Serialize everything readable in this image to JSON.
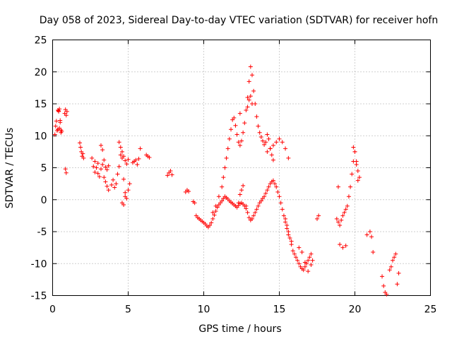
{
  "chart_data": {
    "type": "scatter",
    "title": "Day 058 of 2023, Sidereal Day-to-day VTEC variation (SDTVAR) for receiver hofn",
    "xlabel": "GPS time / hours",
    "ylabel": "SDTVAR / TECUs",
    "xlim": [
      0,
      25
    ],
    "ylim": [
      -15,
      25
    ],
    "xticks": [
      0,
      5,
      10,
      15,
      20,
      25
    ],
    "yticks": [
      -15,
      -10,
      -5,
      0,
      5,
      10,
      15,
      20,
      25
    ],
    "xtick_labels": [
      "0",
      "5",
      "10",
      "15",
      "20",
      "25"
    ],
    "ytick_labels": [
      "-15",
      "-10",
      "-5",
      "0",
      "5",
      "10",
      "15",
      "20",
      "25"
    ],
    "grid": true,
    "marker": "+",
    "color": "#ff0000",
    "series": [
      {
        "name": "SDTVAR",
        "x": [
          0.15,
          0.2,
          0.25,
          0.3,
          0.35,
          0.4,
          0.45,
          0.5,
          0.55,
          0.6,
          0.35,
          0.4,
          0.45,
          0.5,
          0.55,
          0.8,
          0.85,
          0.9,
          0.95,
          0.85,
          0.9,
          1.8,
          1.85,
          1.9,
          1.95,
          2.0,
          2.05,
          2.6,
          2.7,
          2.8,
          2.9,
          3.0,
          3.1,
          3.2,
          3.3,
          3.4,
          3.5,
          3.6,
          3.7,
          2.8,
          3.0,
          3.2,
          3.3,
          3.4,
          3.5,
          3.6,
          3.7,
          3.9,
          4.0,
          4.1,
          4.2,
          4.3,
          4.4,
          4.5,
          4.6,
          4.7,
          4.8,
          4.9,
          5.0,
          5.1,
          4.4,
          4.5,
          4.6,
          4.7,
          4.8,
          4.9,
          5.0,
          4.6,
          4.7,
          4.8,
          5.3,
          5.4,
          5.5,
          5.6,
          5.7,
          5.8,
          6.2,
          6.3,
          6.4,
          7.6,
          7.7,
          7.8,
          7.9,
          8.8,
          8.9,
          9.0,
          9.3,
          9.4,
          9.5,
          9.6,
          9.7,
          9.8,
          9.9,
          10.0,
          10.1,
          10.2,
          10.3,
          10.4,
          10.5,
          10.6,
          10.7,
          10.8,
          10.9,
          11.0,
          11.1,
          11.2,
          11.3,
          11.4,
          11.5,
          11.6,
          11.7,
          11.8,
          11.9,
          12.0,
          12.1,
          12.2,
          12.3,
          12.4,
          12.5,
          12.6,
          12.7,
          12.8,
          10.6,
          10.8,
          11.0,
          11.2,
          11.3,
          11.4,
          11.5,
          11.6,
          11.7,
          11.8,
          11.9,
          12.0,
          12.1,
          12.2,
          12.3,
          12.4,
          12.4,
          12.5,
          12.6,
          12.7,
          12.8,
          12.9,
          13.0,
          13.1,
          13.2,
          13.3,
          13.4,
          13.5,
          13.6,
          13.7,
          13.8,
          13.9,
          14.0,
          14.1,
          14.2,
          14.3,
          14.4,
          14.5,
          14.6,
          12.8,
          12.9,
          13.0,
          13.1,
          13.2,
          13.3,
          13.4,
          13.5,
          13.6,
          12.9,
          13.0,
          13.1,
          13.2,
          12.3,
          12.4,
          12.5,
          12.6,
          13.7,
          13.8,
          13.9,
          14.0,
          14.1,
          14.2,
          14.3,
          14.4,
          14.5,
          14.6,
          14.7,
          14.8,
          14.9,
          15.0,
          15.1,
          15.2,
          15.3,
          15.4,
          15.5,
          15.6,
          15.7,
          15.8,
          14.2,
          14.4,
          14.6,
          14.8,
          15.0,
          15.2,
          15.4,
          15.6,
          15.4,
          15.5,
          15.6,
          15.7,
          15.8,
          15.9,
          16.0,
          16.1,
          16.2,
          16.3,
          16.4,
          16.5,
          16.6,
          16.7,
          16.8,
          16.9,
          17.0,
          17.1,
          17.2,
          16.3,
          16.5,
          16.7,
          16.9,
          17.1,
          17.5,
          17.6,
          18.8,
          18.9,
          19.0,
          19.1,
          19.2,
          19.3,
          19.4,
          19.5,
          19.6,
          19.7,
          19.8,
          19.9,
          20.0,
          20.1,
          20.2,
          20.3,
          19.9,
          20.0,
          20.1,
          20.2,
          19.0,
          19.2,
          19.4,
          18.9,
          20.8,
          21.0,
          21.1,
          21.2,
          21.8,
          21.9,
          22.0,
          22.1,
          22.3,
          22.4,
          22.5,
          22.6,
          22.7,
          22.8,
          22.9
        ],
        "y": [
          10.2,
          11.5,
          12.3,
          10.8,
          11.0,
          13.9,
          14.2,
          12.1,
          10.5,
          10.7,
          14.0,
          13.8,
          11.2,
          12.4,
          10.9,
          13.5,
          14.1,
          13.2,
          13.8,
          4.8,
          4.2,
          8.9,
          8.2,
          7.5,
          6.8,
          7.2,
          6.5,
          6.5,
          5.2,
          4.3,
          5.0,
          4.1,
          3.6,
          4.8,
          5.5,
          6.2,
          5.1,
          4.7,
          5.3,
          6.0,
          5.7,
          8.5,
          7.8,
          3.5,
          2.8,
          2.1,
          1.5,
          2.3,
          3.1,
          1.9,
          2.5,
          4.0,
          5.2,
          7.0,
          6.5,
          3.2,
          1.1,
          0.2,
          1.5,
          2.5,
          9.0,
          8.2,
          7.5,
          6.8,
          6.1,
          5.6,
          6.3,
          -0.5,
          -0.8,
          0.5,
          5.8,
          6.0,
          6.2,
          5.5,
          6.4,
          8.0,
          7.0,
          6.8,
          6.6,
          3.8,
          4.2,
          4.5,
          3.9,
          1.2,
          1.5,
          1.3,
          -0.3,
          -0.5,
          -2.5,
          -2.8,
          -3.0,
          -3.2,
          -3.4,
          -3.6,
          -3.8,
          -4.1,
          -4.3,
          -4.0,
          -3.6,
          -3.0,
          -2.4,
          -1.8,
          -1.2,
          -0.8,
          -0.5,
          -0.2,
          0.2,
          0.5,
          0.3,
          0.1,
          -0.2,
          -0.4,
          -0.6,
          -0.8,
          -1.0,
          -1.2,
          -0.9,
          -0.6,
          -0.5,
          -0.7,
          -1.0,
          -1.4,
          -2.0,
          -1.0,
          0.5,
          2.0,
          3.5,
          5.0,
          6.5,
          8.0,
          9.5,
          11.0,
          12.5,
          12.8,
          11.6,
          10.2,
          9.0,
          13.5,
          8.5,
          9.2,
          10.5,
          12.0,
          14.0,
          16.0,
          18.5,
          20.8,
          19.5,
          17.0,
          15.0,
          13.0,
          11.5,
          10.5,
          9.8,
          9.2,
          8.6,
          9.0,
          10.2,
          9.5,
          8.0,
          7.0,
          6.2,
          -1.0,
          -2.0,
          -2.8,
          -3.2,
          -3.0,
          -2.5,
          -2.0,
          -1.5,
          -1.0,
          14.5,
          15.6,
          16.2,
          15.0,
          -0.5,
          0.8,
          1.5,
          2.2,
          -0.5,
          -0.2,
          0.2,
          0.5,
          1.0,
          1.5,
          2.0,
          2.5,
          2.8,
          3.0,
          2.5,
          2.0,
          1.2,
          0.5,
          -0.5,
          -1.5,
          -2.5,
          -3.5,
          -4.5,
          -5.5,
          -6.0,
          -6.5,
          7.5,
          8.0,
          8.5,
          9.0,
          9.5,
          9.0,
          8.0,
          6.5,
          -3.0,
          -4.0,
          -5.0,
          -6.0,
          -7.0,
          -8.0,
          -8.5,
          -9.0,
          -9.5,
          -10.0,
          -10.5,
          -10.8,
          -11.0,
          -10.5,
          -10.0,
          -9.5,
          -9.0,
          -8.5,
          -9.5,
          -7.5,
          -8.2,
          -9.8,
          -11.2,
          -10.2,
          -3.0,
          -2.5,
          -3.0,
          -3.5,
          -4.0,
          -3.2,
          -2.5,
          -2.0,
          -1.5,
          -1.0,
          0.5,
          2.0,
          4.0,
          6.0,
          7.5,
          6.0,
          4.5,
          3.5,
          8.2,
          7.5,
          5.5,
          3.0,
          -7.0,
          -7.5,
          -7.2,
          2.0,
          -5.5,
          -5.0,
          -5.8,
          -8.2,
          -12.0,
          -13.5,
          -14.5,
          -14.8,
          -11.0,
          -10.5,
          -9.5,
          -9.0,
          -8.5,
          -13.2,
          -11.5
        ]
      }
    ]
  }
}
